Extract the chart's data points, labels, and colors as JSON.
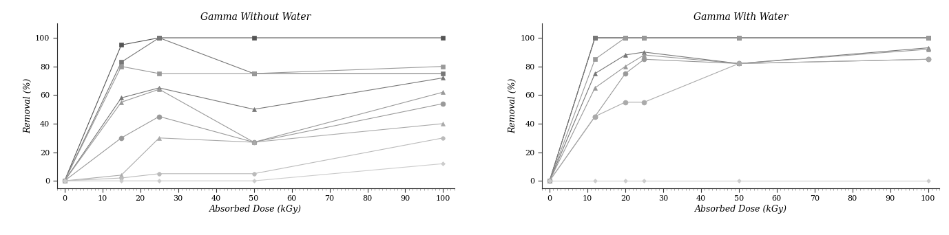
{
  "title1": "Gamma Without Water",
  "title2": "Gamma With Water",
  "xlabel": "Absorbed Dose (kGy)",
  "ylabel": "Removal (%)",
  "xlim": [
    -2,
    103
  ],
  "ylim": [
    -5,
    110
  ],
  "xticks": [
    0,
    10,
    20,
    30,
    40,
    50,
    60,
    70,
    80,
    90,
    100
  ],
  "yticks": [
    0,
    20,
    40,
    60,
    80,
    100
  ],
  "chart1_series": [
    {
      "x": [
        0,
        15,
        25,
        50,
        100
      ],
      "y": [
        0,
        95,
        100,
        100,
        100
      ],
      "marker": "s",
      "color": "#555555",
      "ms": 5
    },
    {
      "x": [
        0,
        15,
        25,
        50,
        100
      ],
      "y": [
        0,
        83,
        100,
        75,
        75
      ],
      "marker": "s",
      "color": "#777777",
      "ms": 5
    },
    {
      "x": [
        0,
        15,
        25,
        50,
        100
      ],
      "y": [
        0,
        80,
        75,
        75,
        80
      ],
      "marker": "s",
      "color": "#999999",
      "ms": 5
    },
    {
      "x": [
        0,
        15,
        25,
        50,
        100
      ],
      "y": [
        0,
        58,
        65,
        50,
        72
      ],
      "marker": "^",
      "color": "#777777",
      "ms": 5
    },
    {
      "x": [
        0,
        15,
        25,
        50,
        100
      ],
      "y": [
        0,
        55,
        64,
        27,
        62
      ],
      "marker": "^",
      "color": "#999999",
      "ms": 5
    },
    {
      "x": [
        0,
        15,
        25,
        50,
        100
      ],
      "y": [
        0,
        30,
        45,
        27,
        54
      ],
      "marker": "o",
      "color": "#999999",
      "ms": 5
    },
    {
      "x": [
        0,
        15,
        25,
        50,
        100
      ],
      "y": [
        0,
        4,
        30,
        27,
        40
      ],
      "marker": "^",
      "color": "#aaaaaa",
      "ms": 5
    },
    {
      "x": [
        0,
        15,
        25,
        50,
        100
      ],
      "y": [
        0,
        2,
        5,
        5,
        30
      ],
      "marker": "o",
      "color": "#bbbbbb",
      "ms": 4
    },
    {
      "x": [
        0,
        15,
        25,
        50,
        100
      ],
      "y": [
        0,
        0,
        0,
        0,
        12
      ],
      "marker": "D",
      "color": "#cccccc",
      "ms": 3
    }
  ],
  "chart2_series": [
    {
      "x": [
        0,
        12,
        20,
        25,
        50,
        100
      ],
      "y": [
        0,
        100,
        100,
        100,
        100,
        100
      ],
      "marker": "s",
      "color": "#555555",
      "ms": 5
    },
    {
      "x": [
        0,
        12,
        20,
        25,
        50,
        100
      ],
      "y": [
        0,
        100,
        100,
        100,
        100,
        100
      ],
      "marker": "s",
      "color": "#777777",
      "ms": 5
    },
    {
      "x": [
        0,
        12,
        20,
        25,
        50,
        100
      ],
      "y": [
        0,
        85,
        100,
        100,
        100,
        100
      ],
      "marker": "s",
      "color": "#999999",
      "ms": 5
    },
    {
      "x": [
        0,
        12,
        20,
        25,
        50,
        100
      ],
      "y": [
        0,
        75,
        88,
        90,
        82,
        93
      ],
      "marker": "^",
      "color": "#777777",
      "ms": 5
    },
    {
      "x": [
        0,
        12,
        20,
        25,
        50,
        100
      ],
      "y": [
        0,
        65,
        80,
        88,
        82,
        92
      ],
      "marker": "^",
      "color": "#999999",
      "ms": 5
    },
    {
      "x": [
        0,
        12,
        20,
        25,
        50,
        100
      ],
      "y": [
        0,
        45,
        75,
        85,
        82,
        85
      ],
      "marker": "o",
      "color": "#999999",
      "ms": 5
    },
    {
      "x": [
        0,
        12,
        20,
        25,
        50,
        100
      ],
      "y": [
        0,
        45,
        55,
        55,
        82,
        85
      ],
      "marker": "o",
      "color": "#aaaaaa",
      "ms": 5
    },
    {
      "x": [
        0,
        12,
        20,
        25,
        50,
        100
      ],
      "y": [
        0,
        0,
        0,
        0,
        0,
        0
      ],
      "marker": "D",
      "color": "#cccccc",
      "ms": 3
    }
  ],
  "linewidth": 0.8,
  "fontsize_title": 10,
  "fontsize_labels": 9,
  "fontsize_ticks": 8,
  "fig_bg": "#ffffff",
  "ax_bg": "#ffffff"
}
